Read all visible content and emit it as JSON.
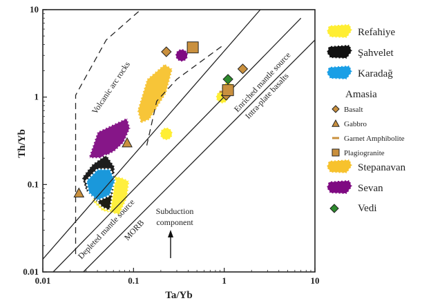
{
  "chart_data": {
    "type": "scatter",
    "xlabel": "Ta/Yb",
    "ylabel": "Th/Yb",
    "xscale": "log",
    "yscale": "log",
    "xlim": [
      0.01,
      10
    ],
    "ylim": [
      0.01,
      10
    ],
    "x_ticks": [
      "0.01",
      "0.1",
      "1",
      "10"
    ],
    "y_ticks": [
      "0.01",
      "0.1",
      "1",
      "10"
    ],
    "annotations": {
      "volcanic_arc": "Volcanic arc rocks",
      "enriched": "Enriched mantle source",
      "intraplate": "Intra-plate basalts",
      "depleted": "Depleted mantle source",
      "morb": "MORB",
      "subduction": [
        "Subduction",
        "component"
      ]
    },
    "reference_lines": {
      "mantle_array_upper": [
        [
          0.01,
          0.014
        ],
        [
          2.5,
          10
        ]
      ],
      "mantle_array_lower": [
        [
          0.028,
          0.01
        ],
        [
          10,
          4.5
        ]
      ],
      "mantle_array_middle": [
        [
          0.013,
          0.01
        ],
        [
          7,
          8
        ]
      ],
      "arc_boundary_left": [
        [
          0.023,
          0.016
        ],
        [
          0.023,
          1.05
        ],
        [
          0.05,
          4.5
        ],
        [
          0.12,
          10
        ]
      ],
      "arc_boundary_right": [
        [
          0.14,
          0.28
        ],
        [
          0.18,
          0.9
        ],
        [
          0.3,
          1.6
        ],
        [
          1.0,
          4.0
        ]
      ]
    },
    "regions": [
      {
        "name": "Refahiye",
        "color": "#ffee33",
        "stroke": "#ffee33",
        "points": [
          [
            0.05,
            0.13
          ],
          [
            0.075,
            0.12
          ],
          [
            0.09,
            0.11
          ],
          [
            0.085,
            0.07
          ],
          [
            0.07,
            0.045
          ],
          [
            0.045,
            0.05
          ],
          [
            0.035,
            0.065
          ],
          [
            0.04,
            0.1
          ]
        ]
      },
      {
        "name": "Stepanavan",
        "color": "#f7c22d",
        "stroke": "#f7c22d",
        "points": [
          [
            0.11,
            0.7
          ],
          [
            0.14,
            1.6
          ],
          [
            0.22,
            2.4
          ],
          [
            0.27,
            2.1
          ],
          [
            0.23,
            1.1
          ],
          [
            0.15,
            0.55
          ],
          [
            0.12,
            0.5
          ]
        ]
      },
      {
        "name": "Sevan",
        "color": "#7f0a82",
        "stroke": "#7f0a82",
        "points": [
          [
            0.032,
            0.2
          ],
          [
            0.04,
            0.4
          ],
          [
            0.058,
            0.48
          ],
          [
            0.085,
            0.58
          ],
          [
            0.092,
            0.44
          ],
          [
            0.078,
            0.3
          ],
          [
            0.062,
            0.24
          ],
          [
            0.045,
            0.2
          ]
        ]
      },
      {
        "name": "Şahvelet",
        "color": "#111111",
        "stroke": "#111111",
        "points": [
          [
            0.027,
            0.12
          ],
          [
            0.035,
            0.17
          ],
          [
            0.05,
            0.22
          ],
          [
            0.062,
            0.16
          ],
          [
            0.06,
            0.09
          ],
          [
            0.055,
            0.05
          ],
          [
            0.045,
            0.055
          ],
          [
            0.03,
            0.085
          ]
        ]
      },
      {
        "name": "Karadağ",
        "color": "#1a9fe6",
        "stroke": "#1a9fe6",
        "points": [
          [
            0.03,
            0.11
          ],
          [
            0.04,
            0.15
          ],
          [
            0.055,
            0.15
          ],
          [
            0.063,
            0.11
          ],
          [
            0.055,
            0.075
          ],
          [
            0.04,
            0.065
          ],
          [
            0.032,
            0.08
          ]
        ]
      }
    ],
    "blobs": [
      {
        "series": "Sevan",
        "x": 0.34,
        "y": 3.0,
        "color": "#7f0a82"
      },
      {
        "series": "Refahiye",
        "x": 0.23,
        "y": 0.38,
        "color": "#ffee33"
      },
      {
        "series": "Refahiye",
        "x": 0.95,
        "y": 1.0,
        "color": "#ffee33"
      },
      {
        "series": "Refahiye",
        "x": 1.1,
        "y": 1.25,
        "color": "#ffee33"
      }
    ],
    "series": [
      {
        "name": "Basalt",
        "marker": "diamond",
        "color": "#c9903e",
        "points": [
          [
            0.23,
            3.3
          ],
          [
            1.6,
            2.1
          ],
          [
            1.05,
            1.05
          ]
        ]
      },
      {
        "name": "Gabbro",
        "marker": "triangle",
        "color": "#c9903e",
        "points": [
          [
            0.025,
            0.08
          ],
          [
            0.085,
            0.3
          ]
        ]
      },
      {
        "name": "Garnet Amphibolite",
        "marker": "dash",
        "color": "#c9903e",
        "points": [
          [
            1.0,
            1.15
          ]
        ]
      },
      {
        "name": "Plagiogranite",
        "marker": "square",
        "color": "#c9903e",
        "points": [
          [
            0.45,
            3.7
          ],
          [
            1.1,
            1.2
          ]
        ]
      },
      {
        "name": "Vedi",
        "marker": "diamond",
        "color": "#2d8a2d",
        "points": [
          [
            1.1,
            1.6
          ]
        ]
      }
    ],
    "legend": {
      "position": "right",
      "entries": [
        {
          "label": "Refahiye",
          "kind": "swatch",
          "color": "#ffee33",
          "size": "big"
        },
        {
          "label": "Şahvelet",
          "kind": "swatch",
          "color": "#111111",
          "size": "big"
        },
        {
          "label": "Karadağ",
          "kind": "swatch",
          "color": "#1a9fe6",
          "size": "big"
        },
        {
          "label": "Amasia",
          "kind": "heading",
          "size": "big"
        },
        {
          "label": "Basalt",
          "kind": "diamond",
          "color": "#c9903e",
          "size": "small"
        },
        {
          "label": "Gabbro",
          "kind": "triangle",
          "color": "#c9903e",
          "size": "small"
        },
        {
          "label": "Garnet Amphibolite",
          "kind": "dash",
          "color": "#c9903e",
          "size": "small"
        },
        {
          "label": "Plagiogranite",
          "kind": "square",
          "color": "#c9903e",
          "size": "small"
        },
        {
          "label": "Stepanavan",
          "kind": "swatch",
          "color": "#f7c22d",
          "size": "big"
        },
        {
          "label": "Sevan",
          "kind": "swatch",
          "color": "#7f0a82",
          "size": "big"
        },
        {
          "label": "Vedi",
          "kind": "diamond",
          "color": "#2d8a2d",
          "size": "big"
        }
      ]
    }
  }
}
